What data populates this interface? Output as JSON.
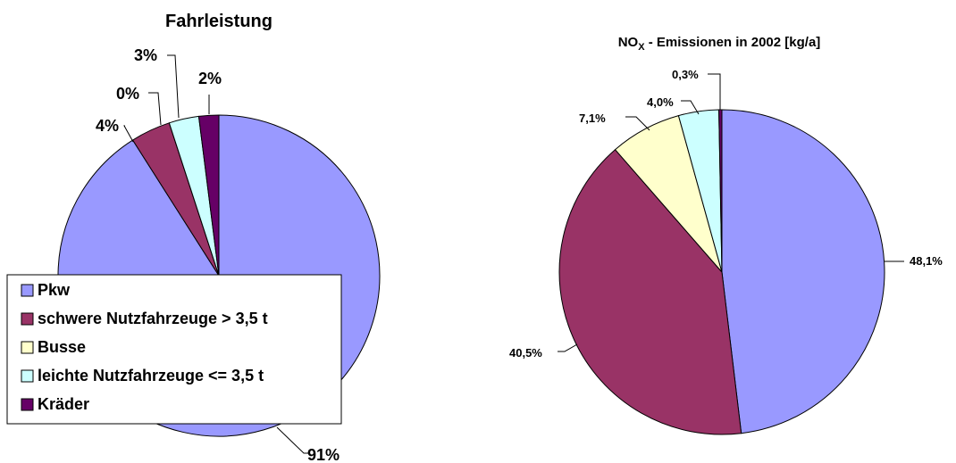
{
  "chart_data": [
    {
      "type": "pie",
      "title": "Fahrleistung",
      "categories": [
        "Pkw",
        "schwere Nutzfahrzeuge > 3,5 t",
        "Busse",
        "leichte Nutzfahrzeuge <= 3,5 t",
        "Kräder"
      ],
      "values": [
        91,
        4,
        0,
        3,
        2
      ],
      "data_labels": [
        "91%",
        "4%",
        "0%",
        "3%",
        "2%"
      ],
      "legend_position": "bottom-left"
    },
    {
      "type": "pie",
      "title": "NOX - Emissionen in 2002 [kg/a]",
      "title_parts": {
        "pre": "NO",
        "sub": "X",
        "post": " - Emissionen in 2002 [kg/a]"
      },
      "categories": [
        "Pkw",
        "schwere Nutzfahrzeuge > 3,5 t",
        "Busse",
        "leichte Nutzfahrzeuge <= 3,5 t",
        "Kräder"
      ],
      "values": [
        48.1,
        40.5,
        7.1,
        4.0,
        0.3
      ],
      "data_labels": [
        "48,1%",
        "40,5%",
        "7,1%",
        "4,0%",
        "0,3%"
      ],
      "legend_position": "none"
    }
  ],
  "colors": [
    "#9999FF",
    "#993366",
    "#FFFFCC",
    "#CCFFFF",
    "#660066"
  ]
}
